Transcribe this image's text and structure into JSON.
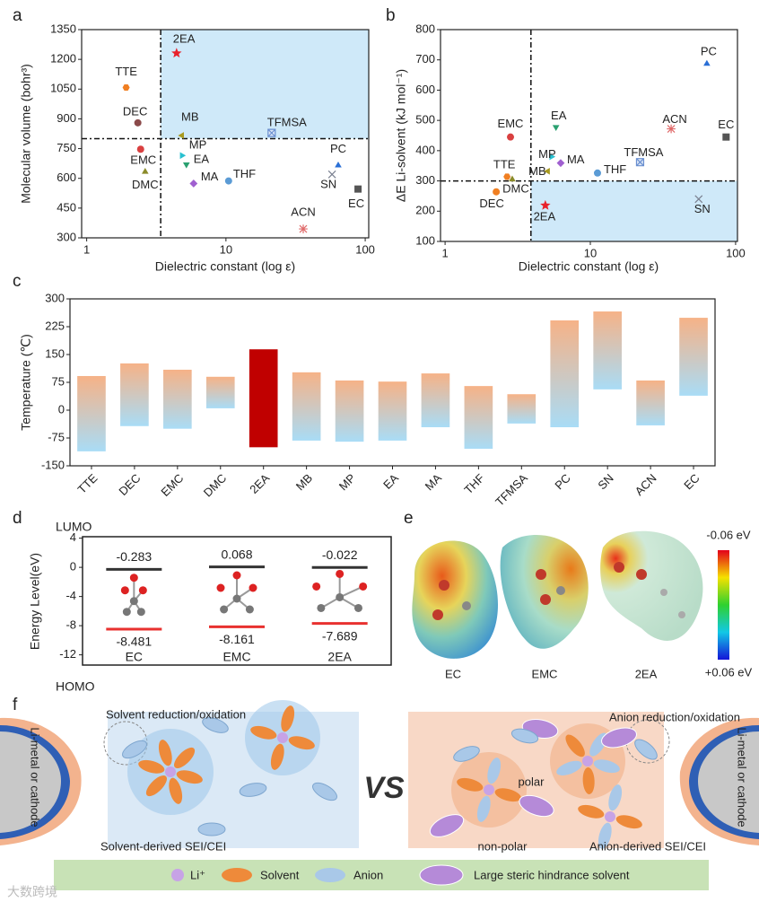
{
  "panel_labels": [
    "a",
    "b",
    "c",
    "d",
    "e",
    "f"
  ],
  "chart_data": [
    {
      "type": "scatter",
      "x_label": "Dielectric constant (log ε)",
      "y_label": "Molecular volume (bohr³)",
      "x_scale": "log",
      "xlim": [
        0.92,
        106
      ],
      "xticks": [
        1,
        10,
        100
      ],
      "ylim": [
        300,
        1350
      ],
      "yticks": [
        300,
        450,
        600,
        750,
        900,
        1050,
        1200,
        1350
      ],
      "labels": [
        "2EA",
        "TTE",
        "DEC",
        "MB",
        "TFMSA",
        "MP",
        "EMC",
        "EA",
        "PC",
        "DMC",
        "MA",
        "THF",
        "SN",
        "EC",
        "ACN"
      ],
      "x": [
        4.42,
        1.92,
        2.33,
        4.83,
        21.3,
        4.83,
        2.44,
        5.2,
        64,
        2.63,
        5.86,
        10.45,
        57.8,
        88.8,
        35.9
      ],
      "values": [
        1231,
        1058,
        880,
        816,
        829,
        715,
        747,
        670,
        665,
        633,
        574,
        587,
        620,
        546,
        345
      ],
      "colors": [
        "#e8212b",
        "#f07f22",
        "#8b4a4a",
        "#a89a20",
        "#6a8fd0",
        "#28c0d0",
        "#d94040",
        "#2aa070",
        "#2a6fd6",
        "#8b8b2a",
        "#a060d0",
        "#5b9bd5",
        "#7a8090",
        "#555555",
        "#e06a6a"
      ],
      "markers": [
        "star",
        "hexagon",
        "circle",
        "triangle-left",
        "square-x",
        "triangle-right",
        "circle",
        "triangle-down",
        "triangle-up",
        "triangle-up",
        "diamond",
        "circle",
        "x",
        "square",
        "asterisk"
      ],
      "highlight_region": {
        "xlim": [
          3.4,
          106
        ],
        "ylim": [
          800,
          1350
        ],
        "color": "#cfe9f9"
      },
      "ref_lines": {
        "x": 3.4,
        "y": 800
      }
    },
    {
      "type": "scatter",
      "x_label": "Dielectric constant (log ε)",
      "y_label": "ΔE Li-solvent (kJ mol⁻¹)",
      "x_scale": "log",
      "xlim": [
        0.93,
        103
      ],
      "xticks": [
        1,
        10,
        100
      ],
      "ylim": [
        100,
        800
      ],
      "yticks": [
        100,
        200,
        300,
        400,
        500,
        600,
        700,
        800
      ],
      "labels": [
        "PC",
        "EMC",
        "EA",
        "ACN",
        "EC",
        "MP",
        "MA",
        "TFMSA",
        "TTE",
        "MB",
        "THF",
        "DMC",
        "DEC",
        "2EA",
        "SN"
      ],
      "x": [
        63.4,
        2.82,
        5.8,
        36,
        86,
        5.4,
        6.25,
        22,
        2.67,
        5.1,
        11.2,
        2.9,
        2.25,
        4.9,
        55.7
      ],
      "values": [
        687,
        445,
        478,
        472,
        445,
        380,
        359,
        362,
        314,
        332,
        326,
        305,
        264,
        219,
        240
      ],
      "colors": [
        "#2a6fd6",
        "#d94040",
        "#2aa070",
        "#e06a6a",
        "#555555",
        "#28c0d0",
        "#a060d0",
        "#6a8fd0",
        "#f07f22",
        "#a89a20",
        "#5b9bd5",
        "#8b8b2a",
        "#f07f22",
        "#e8212b",
        "#7a8090"
      ],
      "markers": [
        "triangle-up",
        "circle",
        "triangle-down",
        "asterisk",
        "square",
        "triangle-right",
        "diamond",
        "square-x",
        "hexagon",
        "triangle-left",
        "circle",
        "triangle-up",
        "circle",
        "star",
        "x"
      ],
      "highlight_region": {
        "xlim": [
          3.9,
          103
        ],
        "ylim": [
          100,
          300
        ],
        "color": "#cfe9f9"
      },
      "ref_lines": {
        "x": 3.9,
        "y": 300
      }
    },
    {
      "type": "floating_bar",
      "y_label": "Temperature (℃)",
      "categories": [
        "TTE",
        "DEC",
        "EMC",
        "DMC",
        "2EA",
        "MB",
        "MP",
        "EA",
        "MA",
        "THF",
        "TFMSA",
        "PC",
        "SN",
        "ACN",
        "EC"
      ],
      "ranges": [
        [
          -111,
          92
        ],
        [
          -43,
          126
        ],
        [
          -50,
          109
        ],
        [
          5,
          90
        ],
        [
          -100,
          164
        ],
        [
          -82,
          102
        ],
        [
          -85,
          80
        ],
        [
          -82,
          77
        ],
        [
          -46,
          99
        ],
        [
          -104,
          65
        ],
        [
          -36,
          43
        ],
        [
          -46,
          242
        ],
        [
          56,
          266
        ],
        [
          -41,
          80
        ],
        [
          39,
          249
        ]
      ],
      "gradient": [
        "#f6b287",
        "#a9dcf6"
      ],
      "highlight": {
        "index": 4,
        "color": "#c00000"
      },
      "ylim": [
        -150,
        300
      ],
      "yticks": [
        -150,
        -75,
        0,
        75,
        150,
        225,
        300
      ]
    },
    {
      "type": "energy_level",
      "y_label": "Energy Level(eV)",
      "categories": [
        "EC",
        "EMC",
        "2EA"
      ],
      "series": [
        {
          "name": "LUMO",
          "color": "#333333",
          "values": [
            -0.283,
            0.068,
            -0.022
          ]
        },
        {
          "name": "HOMO",
          "color": "#e8312f",
          "values": [
            -8.481,
            -8.161,
            -7.689
          ]
        }
      ],
      "ylim": [
        -13.4,
        4.2
      ],
      "yticks": [
        4,
        0,
        -4,
        -8,
        -12
      ]
    }
  ],
  "panel_e": {
    "molecules": [
      "EC",
      "EMC",
      "2EA"
    ],
    "colorbar_top": "-0.06 eV",
    "colorbar_bottom": "+0.06 eV"
  },
  "panel_f": {
    "solvent_process": "Solvent reduction/oxidation",
    "electrode_left": "Li-metal or cathode",
    "solvent_sei": "Solvent-derived SEI/CEI",
    "vs": "VS",
    "anion_process": "Anion reduction/oxidation",
    "electrode_right": "Li-metal or cathode",
    "polar": "polar",
    "non_polar": "non-polar",
    "anion_sei": "Anion-derived SEI/CEI",
    "legend": [
      "Li⁺",
      "Solvent",
      "Anion",
      "Large steric hindrance solvent"
    ]
  },
  "watermark": "大数跨境"
}
